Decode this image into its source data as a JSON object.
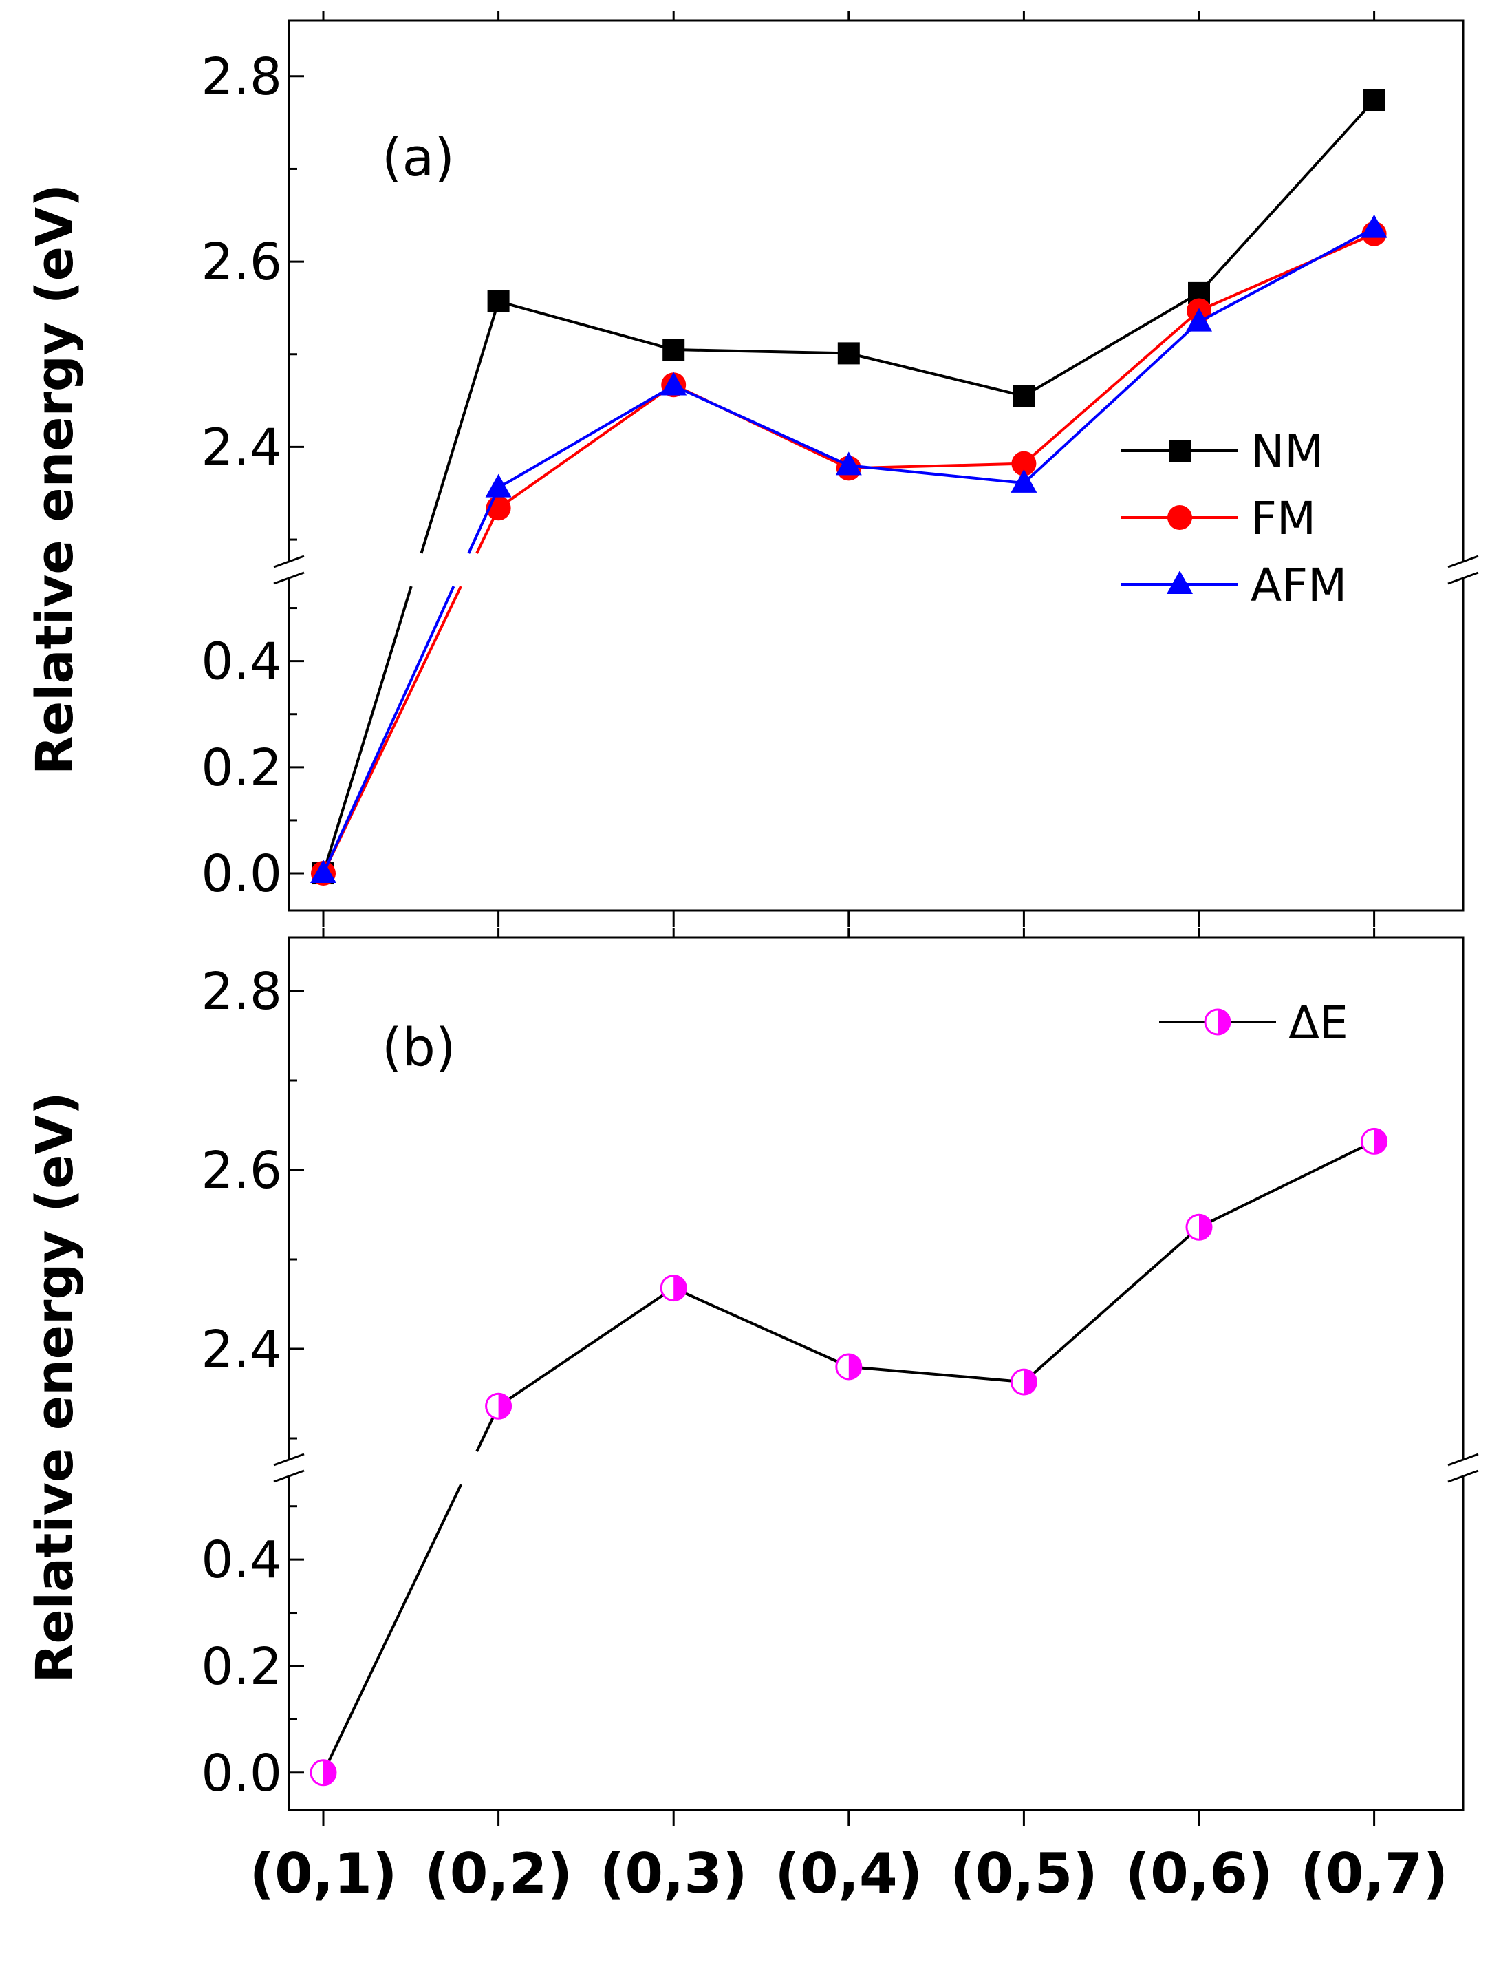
{
  "chart_data": [
    {
      "type": "line",
      "panel_label": "(a)",
      "ylabel": "Relative energy (eV)",
      "xlabel": "",
      "categories": [
        "(0,1)",
        "(0,2)",
        "(0,3)",
        "(0,4)",
        "(0,5)",
        "(0,6)",
        "(0,7)"
      ],
      "axis_break": {
        "lower_range": [
          -0.07,
          0.55
        ],
        "upper_range": [
          2.28,
          2.86
        ]
      },
      "yticks_lower": [
        "0.0",
        "0.2",
        "0.4"
      ],
      "yticks_upper": [
        "2.4",
        "2.6",
        "2.8"
      ],
      "series": [
        {
          "name": "NM",
          "color": "#000000",
          "marker": "square",
          "values": [
            0.0,
            2.557,
            2.505,
            2.501,
            2.455,
            2.566,
            2.774
          ]
        },
        {
          "name": "FM",
          "color": "#ff0000",
          "marker": "circle",
          "values": [
            0.0,
            2.334,
            2.467,
            2.377,
            2.382,
            2.547,
            2.63
          ]
        },
        {
          "name": "AFM",
          "color": "#0000ff",
          "marker": "triangle",
          "values": [
            0.0,
            2.356,
            2.466,
            2.38,
            2.361,
            2.535,
            2.636
          ]
        }
      ],
      "legend": "right-middle",
      "grid": false
    },
    {
      "type": "line",
      "panel_label": "(b)",
      "ylabel": "Relative energy (eV)",
      "xlabel": "",
      "categories": [
        "(0,1)",
        "(0,2)",
        "(0,3)",
        "(0,4)",
        "(0,5)",
        "(0,6)",
        "(0,7)"
      ],
      "axis_break": {
        "lower_range": [
          -0.07,
          0.55
        ],
        "upper_range": [
          2.28,
          2.86
        ]
      },
      "yticks_lower": [
        "0.0",
        "0.2",
        "0.4"
      ],
      "yticks_upper": [
        "2.4",
        "2.6",
        "2.8"
      ],
      "series": [
        {
          "name": "ΔE",
          "color": "#000000",
          "marker_color": "#ff00ff",
          "marker": "half-circle",
          "values": [
            0.0,
            2.336,
            2.468,
            2.38,
            2.363,
            2.536,
            2.632
          ]
        }
      ],
      "legend": "top-right",
      "grid": false
    }
  ]
}
